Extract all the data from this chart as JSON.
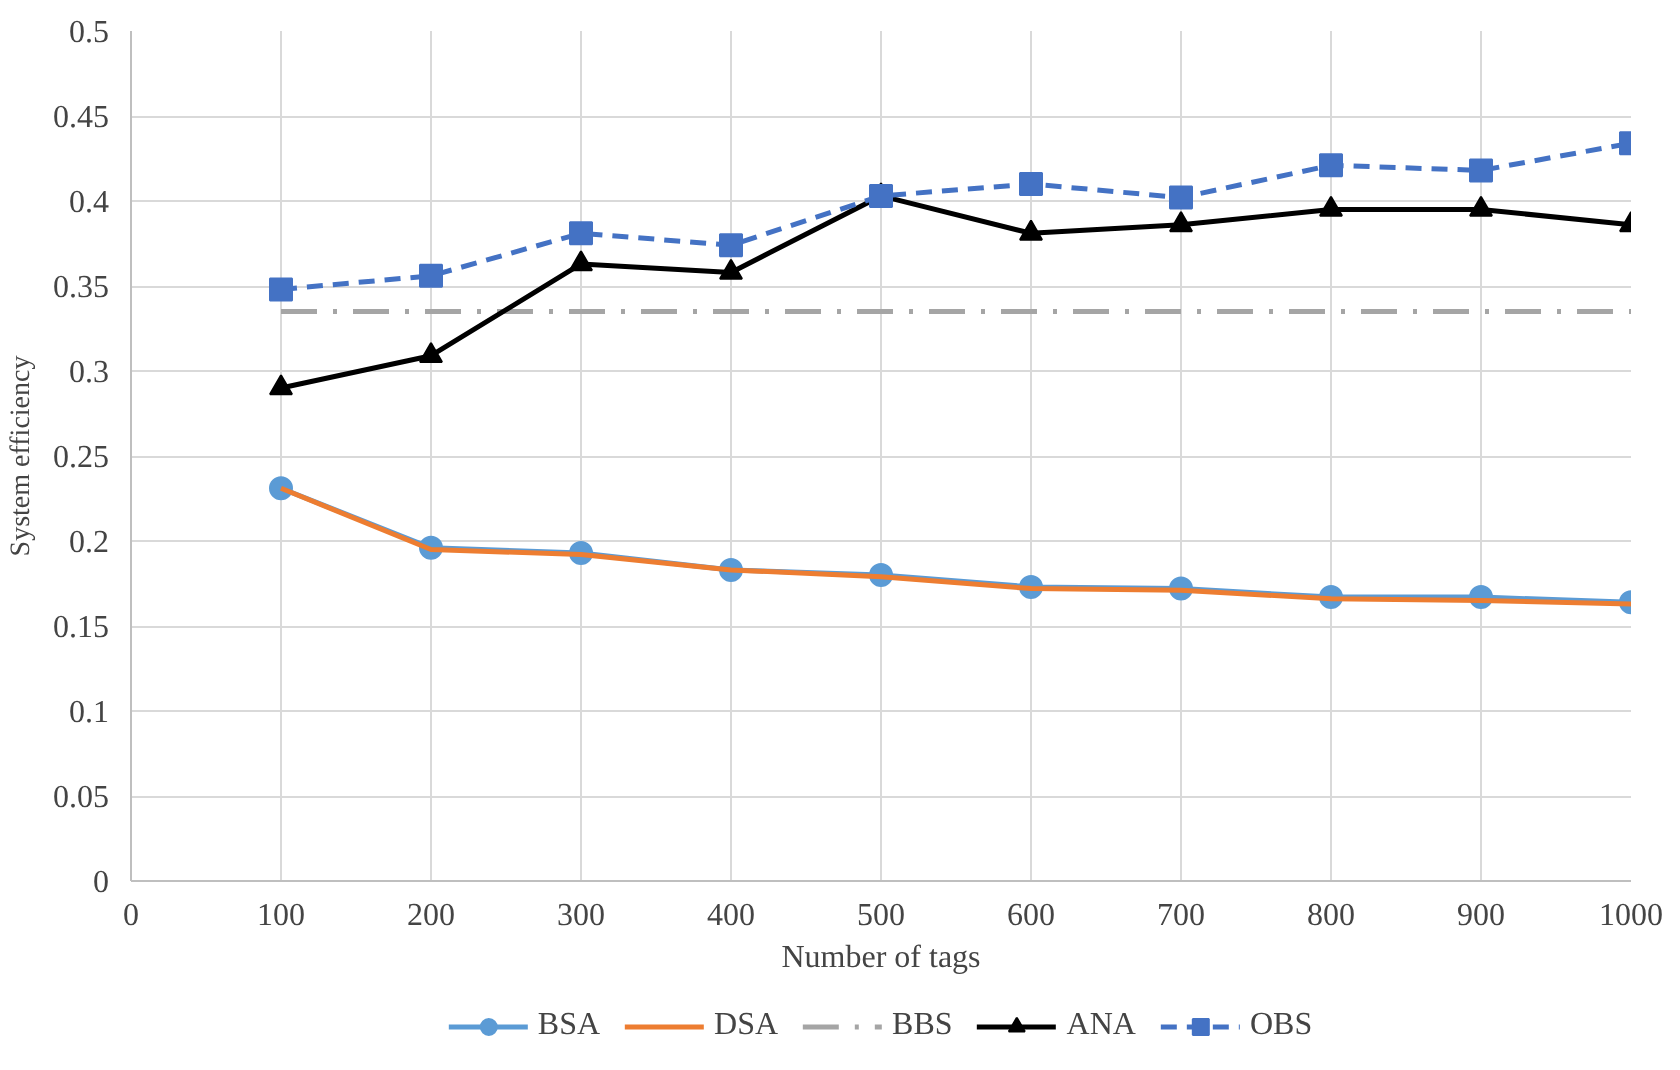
{
  "chart_data": {
    "type": "line",
    "xlabel": "Number of tags",
    "ylabel": "System efficiency",
    "x": [
      100,
      200,
      300,
      400,
      500,
      600,
      700,
      800,
      900,
      1000
    ],
    "xlim": [
      0,
      1000
    ],
    "xticks": [
      0,
      100,
      200,
      300,
      400,
      500,
      600,
      700,
      800,
      900,
      1000
    ],
    "ylim": [
      0,
      0.5
    ],
    "yticks": [
      0,
      0.05,
      0.1,
      0.15,
      0.2,
      0.25,
      0.3,
      0.35,
      0.4,
      0.45,
      0.5
    ],
    "grid": true,
    "legend": "bottom",
    "series": [
      {
        "name": "BSA",
        "color": "#5b9bd5",
        "marker": "circle",
        "line_style": "solid",
        "values": [
          0.231,
          0.196,
          0.193,
          0.183,
          0.18,
          0.173,
          0.172,
          0.167,
          0.167,
          0.164
        ]
      },
      {
        "name": "DSA",
        "color": "#ed7d31",
        "marker": "none",
        "line_style": "solid",
        "values": [
          0.231,
          0.195,
          0.192,
          0.183,
          0.179,
          0.172,
          0.171,
          0.166,
          0.165,
          0.163
        ]
      },
      {
        "name": "BBS",
        "color": "#a5a5a5",
        "marker": "none",
        "line_style": "dashdot",
        "values": [
          0.335,
          0.335,
          0.335,
          0.335,
          0.335,
          0.335,
          0.335,
          0.335,
          0.335,
          0.335
        ]
      },
      {
        "name": "ANA",
        "color": "#000000",
        "marker": "triangle",
        "line_style": "solid",
        "values": [
          0.29,
          0.309,
          0.363,
          0.358,
          0.403,
          0.381,
          0.386,
          0.395,
          0.395,
          0.386
        ]
      },
      {
        "name": "OBS",
        "color": "#4472c4",
        "marker": "square",
        "line_style": "dashed",
        "values": [
          0.348,
          0.356,
          0.381,
          0.374,
          0.403,
          0.41,
          0.402,
          0.421,
          0.418,
          0.434
        ]
      }
    ]
  }
}
